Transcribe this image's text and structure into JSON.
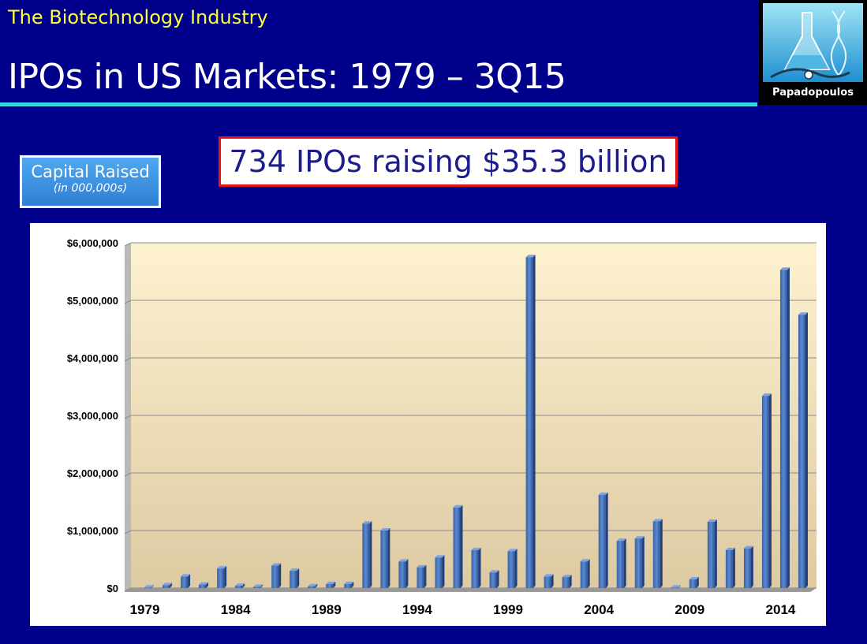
{
  "header": {
    "subtitle": "The Biotechnology Industry",
    "title": "IPOs in US Markets: 1979 – 3Q15",
    "logo_name": "Papadopoulos"
  },
  "headline": "734 IPOs raising $35.3 billion",
  "capital_box": {
    "line1": "Capital Raised",
    "line2": "(in 000,000s)"
  },
  "colors": {
    "background": "#00008b",
    "subtitle": "#ffff33",
    "rule": "#33d6e8",
    "bar": "#4a78c0",
    "headline_border": "#e4151c"
  },
  "chart_data": {
    "type": "bar",
    "title": "",
    "xlabel": "",
    "ylabel": "",
    "ylim": [
      0,
      6000000
    ],
    "yticks": [
      {
        "value": 0,
        "label": "$0"
      },
      {
        "value": 1000000,
        "label": "$1,000,000"
      },
      {
        "value": 2000000,
        "label": "$2,000,000"
      },
      {
        "value": 3000000,
        "label": "$3,000,000"
      },
      {
        "value": 4000000,
        "label": "$4,000,000"
      },
      {
        "value": 5000000,
        "label": "$5,000,000"
      },
      {
        "value": 6000000,
        "label": "$6,000,000"
      }
    ],
    "xtick_labels": [
      "1979",
      "1984",
      "1989",
      "1994",
      "1999",
      "2004",
      "2009",
      "2014"
    ],
    "grid": true,
    "categories": [
      "1979",
      "1980",
      "1981",
      "1982",
      "1983",
      "1984",
      "1985",
      "1986",
      "1987",
      "1988",
      "1989",
      "1990",
      "1991",
      "1992",
      "1993",
      "1994",
      "1995",
      "1996",
      "1997",
      "1998",
      "1999",
      "2000",
      "2001",
      "2002",
      "2003",
      "2004",
      "2005",
      "2006",
      "2007",
      "2008",
      "2009",
      "2010",
      "2011",
      "2012",
      "2013",
      "2014",
      "2015"
    ],
    "values": [
      10000,
      50000,
      200000,
      60000,
      340000,
      40000,
      20000,
      390000,
      300000,
      30000,
      70000,
      70000,
      1120000,
      1000000,
      460000,
      360000,
      530000,
      1400000,
      660000,
      270000,
      640000,
      5750000,
      200000,
      190000,
      460000,
      1620000,
      820000,
      860000,
      1160000,
      10000,
      150000,
      1150000,
      660000,
      690000,
      3340000,
      5530000,
      4750000
    ]
  }
}
